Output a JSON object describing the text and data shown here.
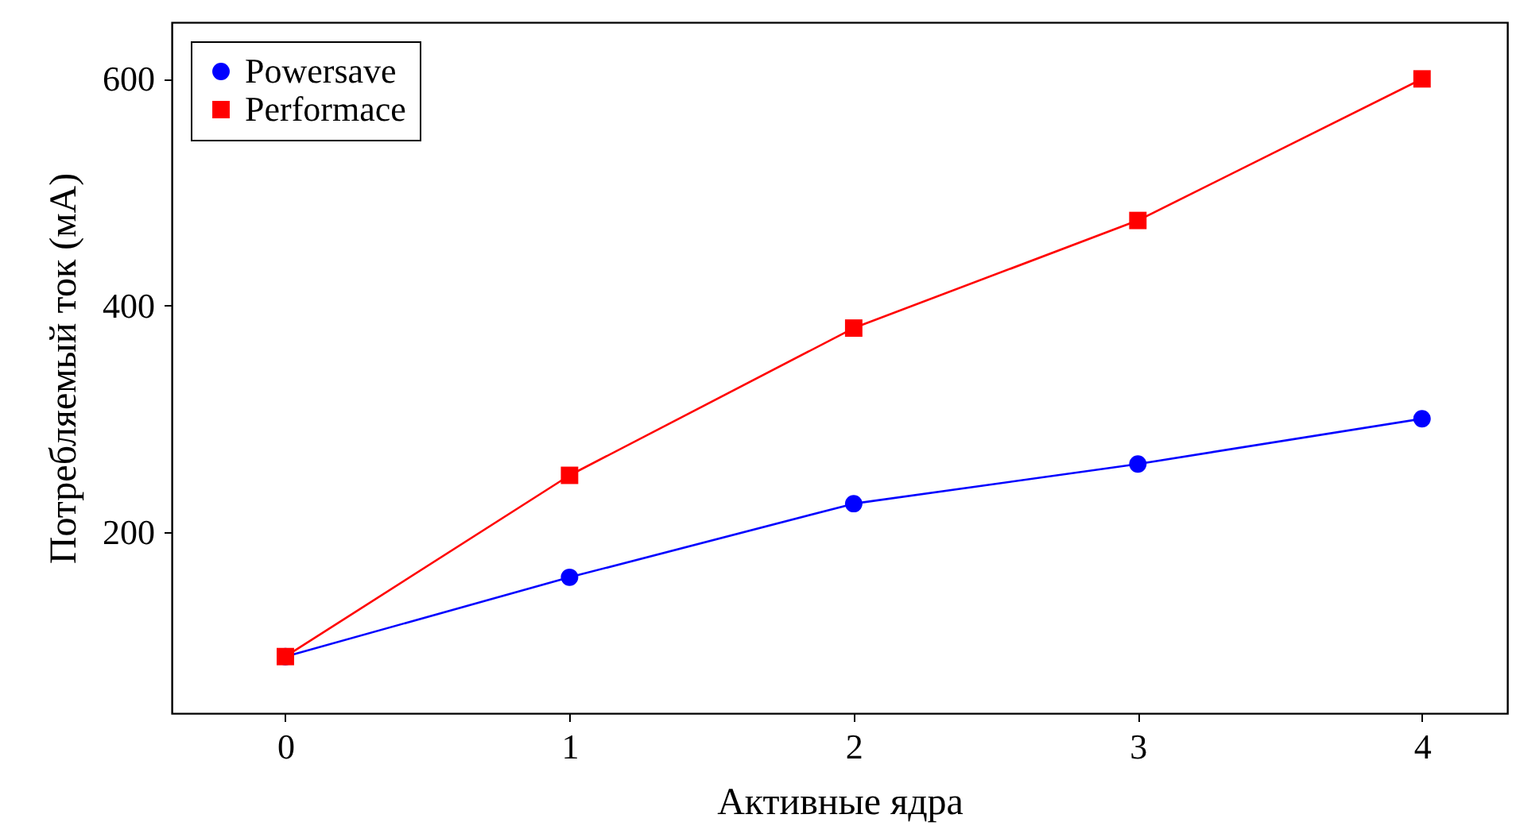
{
  "chart_data": {
    "type": "line",
    "xlabel": "Активные ядра",
    "ylabel": "Потребляемый ток (мА)",
    "x": [
      0,
      1,
      2,
      3,
      4
    ],
    "series": [
      {
        "name": "Powersave",
        "color": "#0000ff",
        "marker": "circle",
        "values": [
          90,
          160,
          225,
          260,
          300
        ]
      },
      {
        "name": "Performace",
        "color": "#ff0000",
        "marker": "square",
        "values": [
          90,
          250,
          380,
          475,
          600
        ]
      }
    ],
    "xlim": [
      -0.4,
      4.3
    ],
    "ylim": [
      40,
      650
    ],
    "xticks": [
      0,
      1,
      2,
      3,
      4
    ],
    "yticks": [
      200,
      400,
      600
    ],
    "legend": "top left",
    "grid": false
  }
}
